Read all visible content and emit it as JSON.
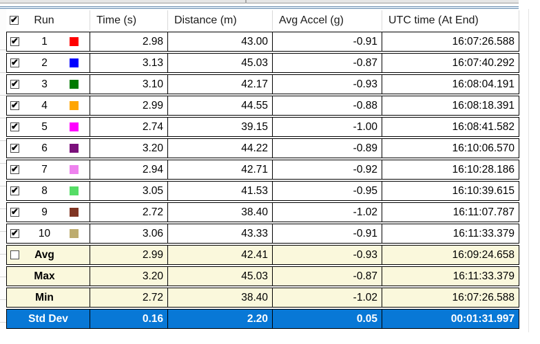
{
  "icons": {
    "check": "✔"
  },
  "header": {
    "select_all_checked": true,
    "columns": [
      {
        "label": "Run"
      },
      {
        "label": "Time (s)"
      },
      {
        "label": "Distance (m)"
      },
      {
        "label": "Avg Accel (g)"
      },
      {
        "label": "UTC time (At End)"
      }
    ]
  },
  "runs": [
    {
      "checked": true,
      "run": "1",
      "color": "#ff0000",
      "time": "2.98",
      "distance": "43.00",
      "accel": "-0.91",
      "utc": "16:07:26.588"
    },
    {
      "checked": true,
      "run": "2",
      "color": "#0000ff",
      "time": "3.13",
      "distance": "45.03",
      "accel": "-0.87",
      "utc": "16:07:40.292"
    },
    {
      "checked": true,
      "run": "3",
      "color": "#007a00",
      "time": "3.10",
      "distance": "42.17",
      "accel": "-0.93",
      "utc": "16:08:04.191"
    },
    {
      "checked": true,
      "run": "4",
      "color": "#ffa500",
      "time": "2.99",
      "distance": "44.55",
      "accel": "-0.88",
      "utc": "16:08:18.391"
    },
    {
      "checked": true,
      "run": "5",
      "color": "#ff00ff",
      "time": "2.74",
      "distance": "39.15",
      "accel": "-1.00",
      "utc": "16:08:41.582"
    },
    {
      "checked": true,
      "run": "6",
      "color": "#7b107b",
      "time": "3.20",
      "distance": "44.22",
      "accel": "-0.89",
      "utc": "16:10:06.570"
    },
    {
      "checked": true,
      "run": "7",
      "color": "#ee82ee",
      "time": "2.94",
      "distance": "42.71",
      "accel": "-0.92",
      "utc": "16:10:28.186"
    },
    {
      "checked": true,
      "run": "8",
      "color": "#55dd66",
      "time": "3.05",
      "distance": "41.53",
      "accel": "-0.95",
      "utc": "16:10:39.615"
    },
    {
      "checked": true,
      "run": "9",
      "color": "#803523",
      "time": "2.72",
      "distance": "38.40",
      "accel": "-1.02",
      "utc": "16:11:07.787"
    },
    {
      "checked": true,
      "run": "10",
      "color": "#bdac6f",
      "time": "3.06",
      "distance": "43.33",
      "accel": "-0.91",
      "utc": "16:11:33.379"
    }
  ],
  "summary": [
    {
      "label": "Avg",
      "variant": "summary",
      "has_checkbox": true,
      "checked": false,
      "time": "2.99",
      "distance": "42.41",
      "accel": "-0.93",
      "utc": "16:09:24.658"
    },
    {
      "label": "Max",
      "variant": "summary",
      "has_checkbox": false,
      "checked": false,
      "time": "3.20",
      "distance": "45.03",
      "accel": "-0.87",
      "utc": "16:11:33.379"
    },
    {
      "label": "Min",
      "variant": "summary",
      "has_checkbox": false,
      "checked": false,
      "time": "2.72",
      "distance": "38.40",
      "accel": "-1.02",
      "utc": "16:07:26.588"
    },
    {
      "label": "Std Dev",
      "variant": "stddev",
      "has_checkbox": false,
      "checked": false,
      "time": "0.16",
      "distance": "2.20",
      "accel": "0.05",
      "utc": "00:01:31.997"
    }
  ],
  "colors": {
    "summary_row_bg": "#faf8dc",
    "stddev_row_bg": "#0878d6",
    "grid_border": "#000000",
    "header_separator": "#d9d9d9",
    "accent_line": "#7796b6"
  }
}
